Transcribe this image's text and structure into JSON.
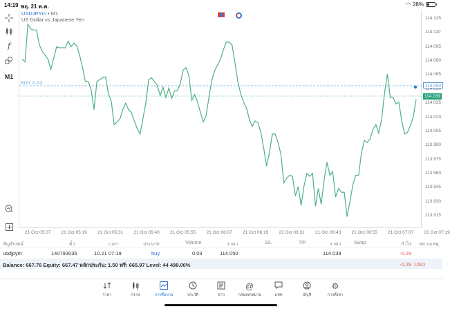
{
  "status_bar": {
    "time": "14:19",
    "date": "พฤ. 21 ต.ค.",
    "battery": "28%"
  },
  "toolbar": {
    "items": [
      {
        "name": "crosshair-icon",
        "glyph": "+"
      },
      {
        "name": "indicators-icon",
        "glyph": "┃┃"
      },
      {
        "name": "function-icon",
        "glyph": "f"
      },
      {
        "name": "objects-icon",
        "glyph": "◇"
      },
      {
        "name": "timeframe",
        "label": "M1"
      },
      {
        "name": "chart-overview-icon",
        "glyph": "⊙"
      },
      {
        "name": "add-icon",
        "glyph": "⊞"
      }
    ]
  },
  "chart": {
    "symbol": "USDJPYm",
    "separator": " • ",
    "timeframe": "M1",
    "description": "US Dollar vs Japanese Yen",
    "buy_line_label": "BUY 0.03",
    "buy_price_tag": "114.050",
    "bid_price_tag": "114.039",
    "line_color": "#4caf84",
    "buy_line_color": "#5b9bd8",
    "bid_line_color": "#26a17f"
  },
  "chart_data": {
    "type": "line",
    "title": "USDJPYm • M1 — US Dollar vs Japanese Yen",
    "xlabel": "",
    "ylabel": "",
    "x_ticks": [
      "21 Oct 05:07",
      "21 Oct 05:19",
      "21 Oct 05:31",
      "21 Oct 05:43",
      "21 Oct 05:55",
      "21 Oct 06:07",
      "21 Oct 06:19",
      "21 Oct 06:31",
      "21 Oct 06:43",
      "21 Oct 06:55",
      "21 Oct 07:07",
      "21 Oct 07:19"
    ],
    "y_ticks": [
      "114.125",
      "114.110",
      "114.095",
      "114.080",
      "114.065",
      "114.050",
      "114.035",
      "114.020",
      "114.005",
      "113.990",
      "113.975",
      "113.960",
      "113.945",
      "113.930",
      "113.915"
    ],
    "ylim": [
      113.91,
      114.128
    ],
    "grid": false,
    "annotations": [
      {
        "type": "hline",
        "label": "BUY 0.03",
        "value": 114.05
      },
      {
        "type": "hline",
        "label": "bid",
        "value": 114.039
      }
    ],
    "series": [
      {
        "name": "USDJPYm close",
        "values": [
          114.082,
          114.079,
          114.119,
          114.114,
          114.113,
          114.113,
          114.097,
          114.09,
          114.086,
          114.082,
          114.071,
          114.083,
          114.095,
          114.094,
          114.094,
          114.094,
          114.101,
          114.095,
          114.099,
          114.096,
          114.086,
          114.073,
          114.058,
          114.058,
          114.049,
          114.028,
          114.058,
          114.06,
          114.062,
          114.063,
          114.045,
          114.037,
          114.012,
          114.015,
          114.018,
          114.028,
          114.035,
          114.028,
          114.025,
          114.016,
          114.008,
          114.002,
          114.018,
          114.035,
          114.06,
          114.062,
          114.058,
          114.054,
          114.043,
          114.052,
          114.041,
          114.051,
          114.04,
          114.048,
          114.048,
          114.056,
          114.07,
          114.073,
          114.064,
          114.038,
          114.044,
          114.036,
          114.025,
          114.015,
          114.022,
          114.042,
          114.06,
          114.07,
          114.076,
          114.082,
          114.092,
          114.1,
          114.1,
          114.097,
          114.078,
          114.058,
          114.045,
          114.036,
          114.03,
          114.018,
          114.01,
          114.016,
          114.014,
          114.004,
          113.987,
          113.968,
          113.982,
          114.002,
          114.002,
          113.993,
          113.98,
          113.95,
          113.955,
          113.958,
          113.957,
          113.936,
          113.946,
          113.926,
          113.946,
          113.96,
          113.957,
          113.96,
          113.925,
          113.944,
          113.927,
          113.953,
          113.972,
          113.958,
          113.962,
          113.935,
          113.944,
          113.94,
          113.94,
          113.914,
          113.93,
          113.948,
          113.958,
          113.958,
          113.982,
          113.995,
          113.993,
          113.997,
          114.007,
          114.012,
          114.003,
          114.018,
          114.045,
          114.066,
          114.041,
          114.041,
          114.034,
          114.036,
          114.016,
          114.002,
          114.004,
          114.011,
          114.02,
          114.039
        ]
      }
    ]
  },
  "table": {
    "headers": [
      "สัญลักษณ์",
      "ตั๋ว",
      "เวลา",
      "ประเภท",
      "Volume",
      "ราคา",
      "S/L",
      "T/P",
      "ราคา",
      "Swap",
      "กำไร",
      "หมายเหตุ"
    ],
    "rows": [
      {
        "symbol": "usdjpym",
        "ticket": "140793036",
        "time": "10.21 07:19",
        "type": "buy",
        "volume": "0.03",
        "open_price": "114.050",
        "sl": "",
        "tp": "",
        "price": "114.039",
        "swap": "",
        "profit": "-0.29",
        "comment": ""
      }
    ]
  },
  "summary": {
    "text": "Balance: 667.76 Equity: 667.47 หลักประกัน: 1.50 ฟรี: 665.97 Level: 44 498.00%",
    "profit": "-0.29",
    "currency": "USD"
  },
  "bottom_nav": {
    "items": [
      {
        "label": "ราคา",
        "glyph": "⇅"
      },
      {
        "label": "กราฟ",
        "glyph": "┃┃"
      },
      {
        "label": "การซื้อขาย",
        "glyph": "📈",
        "active": true
      },
      {
        "label": "ประวัติ",
        "glyph": "◷"
      },
      {
        "label": "ข่าว",
        "glyph": "☰"
      },
      {
        "label": "กล่องจดหมาย",
        "glyph": "@"
      },
      {
        "label": "แชท",
        "glyph": "▭"
      },
      {
        "label": "บัญชี",
        "glyph": "◉"
      },
      {
        "label": "การตั้งค่า",
        "glyph": "⚙"
      }
    ]
  }
}
